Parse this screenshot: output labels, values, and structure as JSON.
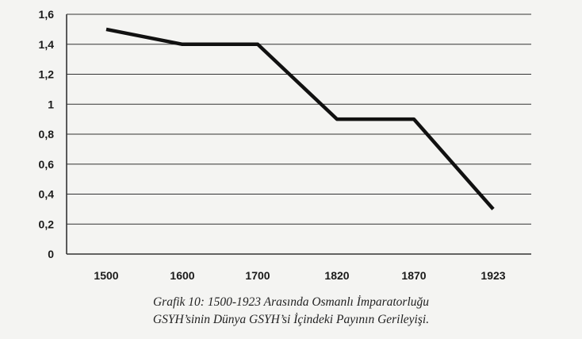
{
  "chart_data": {
    "type": "line",
    "categories": [
      "1500",
      "1600",
      "1700",
      "1820",
      "1870",
      "1923"
    ],
    "series": [
      {
        "values": [
          1.5,
          1.4,
          1.4,
          0.9,
          0.9,
          0.3
        ]
      }
    ],
    "y_ticks": [
      "1,6",
      "1,4",
      "1,2",
      "1",
      "0,8",
      "0,6",
      "0,4",
      "0,2",
      "0"
    ],
    "ylim": [
      0,
      1.6
    ],
    "grid": true,
    "line_color": "#111111"
  },
  "caption": {
    "line1": "Grafik 10: 1500-1923 Arasında Osmanlı İmparatorluğu",
    "line2": "GSYH’sinin Dünya GSYH’si İçindeki Payının Gerileyişi."
  }
}
